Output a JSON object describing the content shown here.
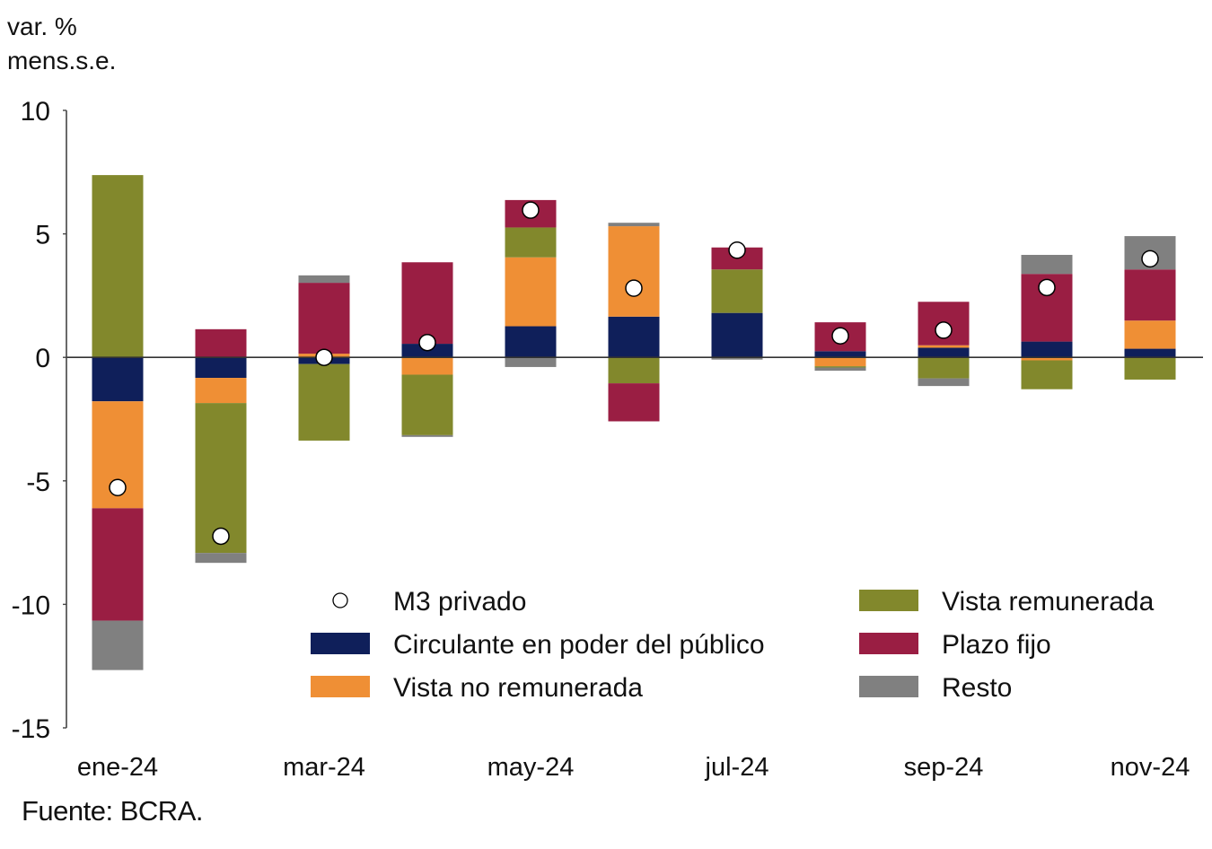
{
  "chart_data": {
    "type": "bar",
    "stacked": true,
    "ylabel_lines": [
      "var. %",
      "mens.s.e."
    ],
    "ylim": [
      -15,
      10
    ],
    "yticks": [
      10,
      5,
      0,
      -5,
      -10,
      -15
    ],
    "categories": [
      "ene-24",
      "feb-24",
      "mar-24",
      "abr-24",
      "may-24",
      "jun-24",
      "jul-24",
      "ago-24",
      "sep-24",
      "oct-24",
      "nov-24"
    ],
    "xtick_labels": [
      "ene-24",
      "",
      "mar-24",
      "",
      "may-24",
      "",
      "jul-24",
      "",
      "sep-24",
      "",
      "nov-24"
    ],
    "series": [
      {
        "name": "Circulante en poder del público",
        "color": "#0f1f5a",
        "values": [
          -1.78,
          -0.83,
          -0.27,
          0.55,
          1.26,
          1.65,
          1.8,
          0.25,
          0.39,
          0.64,
          0.35
        ]
      },
      {
        "name": "Vista no remunerada",
        "color": "#ef8f35",
        "values": [
          -4.33,
          -1.02,
          0.15,
          -0.7,
          2.79,
          3.66,
          0.0,
          -0.36,
          0.1,
          -0.12,
          1.14
        ]
      },
      {
        "name": "Vista remunerada",
        "color": "#82882c",
        "values": [
          7.38,
          -6.07,
          -3.1,
          -2.45,
          1.21,
          -1.05,
          1.76,
          -0.05,
          -0.85,
          -1.17,
          -0.9
        ]
      },
      {
        "name": "Plazo fijo",
        "color": "#9a1e43",
        "values": [
          -4.55,
          1.14,
          2.87,
          3.3,
          1.11,
          -1.54,
          0.89,
          1.17,
          1.76,
          2.74,
          2.07
        ]
      },
      {
        "name": "Resto",
        "color": "#808080",
        "values": [
          -2.0,
          -0.4,
          0.3,
          -0.07,
          -0.39,
          0.14,
          -0.09,
          -0.13,
          -0.31,
          0.77,
          1.35
        ]
      }
    ],
    "line_series": {
      "name": "M3 privado",
      "marker": "circle",
      "color": "#ffffff",
      "values": [
        -5.27,
        -7.24,
        0.0,
        0.6,
        5.96,
        2.8,
        4.34,
        0.87,
        1.1,
        2.83,
        3.99
      ]
    },
    "legend": {
      "placement": "lower-right",
      "items": [
        {
          "label": "M3 privado",
          "kind": "marker"
        },
        {
          "label": "Vista remunerada",
          "kind": "swatch",
          "color": "#82882c"
        },
        {
          "label": "Circulante en poder del público",
          "kind": "swatch",
          "color": "#0f1f5a"
        },
        {
          "label": "Plazo fijo",
          "kind": "swatch",
          "color": "#9a1e43"
        },
        {
          "label": "Vista no remunerada",
          "kind": "swatch",
          "color": "#ef8f35"
        },
        {
          "label": "Resto",
          "kind": "swatch",
          "color": "#808080"
        }
      ]
    },
    "grid": false,
    "source": "Fuente: BCRA."
  }
}
